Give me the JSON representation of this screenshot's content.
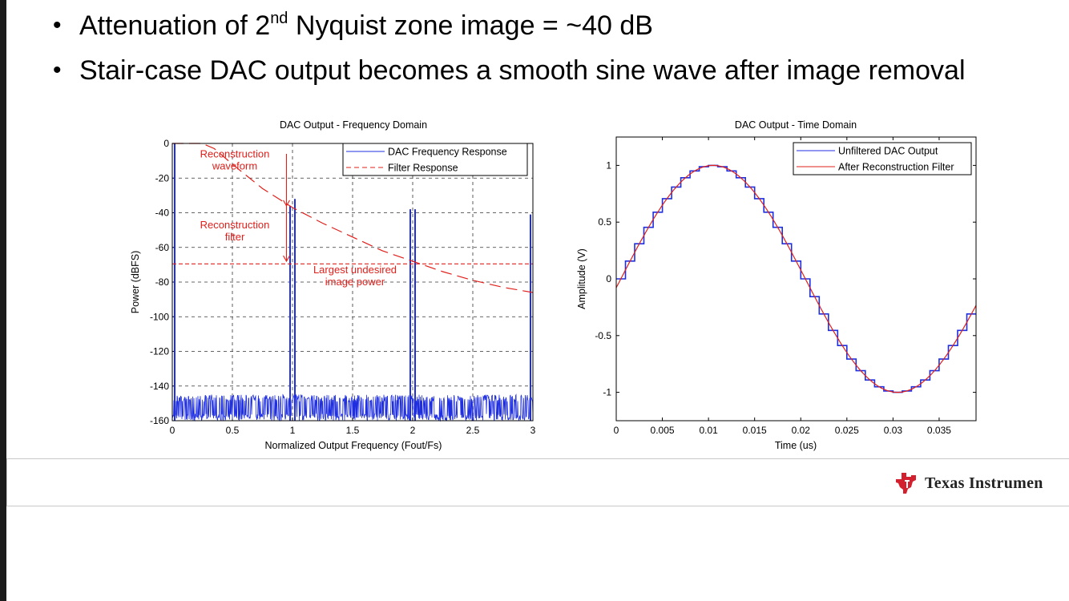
{
  "slide": {
    "bullets": [
      {
        "pre": "Attenuation of 2",
        "sup": "nd",
        "post": " Nyquist zone image = ~40 dB"
      },
      {
        "pre": "Stair-case DAC output becomes a smooth sine wave after image removal",
        "sup": "",
        "post": ""
      }
    ],
    "bullet_symbol": "•",
    "logo_text": "Texas Instrumen"
  },
  "colors": {
    "blue": "#1f2fe0",
    "red": "#e0201b",
    "grid": "#333333"
  },
  "chart_data": [
    {
      "type": "line",
      "title": "DAC Output - Frequency Domain",
      "xlabel": "Normalized Output Frequency (Fout/Fs)",
      "ylabel": "Power (dBFS)",
      "xlim": [
        0,
        3
      ],
      "ylim": [
        -160,
        0
      ],
      "xticks": [
        0,
        0.5,
        1,
        1.5,
        2,
        2.5,
        3
      ],
      "yticks": [
        0,
        -20,
        -40,
        -60,
        -80,
        -100,
        -120,
        -140,
        -160
      ],
      "grid": true,
      "legend": "top-right",
      "series": [
        {
          "name": "DAC Frequency Response",
          "noise_floor_dbfs": [
            -145,
            -152
          ],
          "tones": [
            {
              "x": 0.02,
              "y": 0
            },
            {
              "x": 0.98,
              "y": -36
            },
            {
              "x": 1.02,
              "y": -32
            },
            {
              "x": 1.98,
              "y": -38
            },
            {
              "x": 2.02,
              "y": -38
            },
            {
              "x": 2.98,
              "y": -41
            }
          ]
        },
        {
          "name": "Filter Response",
          "x": [
            0,
            0.25,
            0.35,
            0.5,
            0.75,
            1.0,
            1.25,
            1.5,
            1.75,
            2.0,
            2.25,
            2.5,
            2.75,
            3.0
          ],
          "y": [
            0,
            0,
            -3,
            -12,
            -26,
            -37,
            -46,
            -54,
            -62,
            -68,
            -74,
            -79,
            -83,
            -86
          ]
        }
      ],
      "hlines": [
        {
          "y": -69.5,
          "style": "dashed",
          "color": "red"
        }
      ],
      "annotations": [
        {
          "lines": [
            "Reconstruction",
            "waveform"
          ],
          "x": 0.52,
          "y": -8
        },
        {
          "lines": [
            "Reconstruction",
            "filter"
          ],
          "x": 0.52,
          "y": -49
        },
        {
          "lines": [
            "Largest undesired",
            "image power"
          ],
          "x": 1.52,
          "y": -75
        }
      ],
      "arrows": [
        {
          "x": 0.95,
          "from_y": -6,
          "to_y": -36
        },
        {
          "x": 0.95,
          "from_y": -36,
          "to_y": -68
        }
      ]
    },
    {
      "type": "line",
      "title": "DAC Output - Time Domain",
      "xlabel": "Time (us)",
      "ylabel": "Amplitude (V)",
      "xlim": [
        0,
        0.039
      ],
      "ylim": [
        -1.25,
        1.25
      ],
      "xticks": [
        0,
        0.005,
        0.01,
        0.015,
        0.02,
        0.025,
        0.03,
        0.035
      ],
      "yticks": [
        1,
        0.5,
        0,
        -0.5,
        -1
      ],
      "grid": false,
      "legend": "top-right",
      "signal": {
        "period_us": 0.04,
        "amplitude": 1,
        "samples_per_period": 40
      },
      "series": [
        {
          "name": "Unfiltered DAC Output",
          "style": "staircase"
        },
        {
          "name": "After Reconstruction Filter",
          "style": "smooth"
        }
      ]
    }
  ]
}
